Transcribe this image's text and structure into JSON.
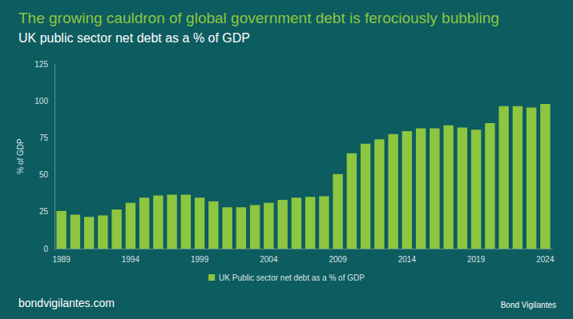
{
  "chart_data": {
    "type": "bar",
    "title": "The growing cauldron of global government debt is ferociously bubbling",
    "subtitle": "UK public sector net debt as a % of GDP",
    "y_label": "% of GDP",
    "footer": "bondvigilantes.com",
    "logo": "Bond Vigilantes",
    "categories": [
      "1989",
      null,
      null,
      null,
      null,
      "1994",
      null,
      null,
      null,
      null,
      "1999",
      null,
      null,
      null,
      null,
      "2004",
      null,
      null,
      null,
      null,
      "2009",
      null,
      null,
      null,
      null,
      "2014",
      null,
      null,
      null,
      null,
      "2019",
      null,
      null,
      null,
      null,
      "2024"
    ],
    "series": [
      {
        "name": "UK Public sector net debt as a % of GDP",
        "color": "#8dc63f",
        "values": [
          25.5,
          23,
          21.5,
          22.5,
          26.5,
          31,
          34.5,
          36,
          36.5,
          36.5,
          34.5,
          32,
          28,
          28,
          29.5,
          31,
          33,
          34.5,
          35,
          35.5,
          50.5,
          64.5,
          71,
          74,
          77.5,
          79.5,
          81.5,
          81.5,
          83.5,
          82,
          80.5,
          85,
          96.5,
          96.5,
          95.5,
          98
        ]
      }
    ],
    "ylim": [
      0,
      125
    ],
    "yticks": [
      0,
      25,
      50,
      75,
      100,
      125
    ],
    "grid": false,
    "legend": "bottom"
  }
}
